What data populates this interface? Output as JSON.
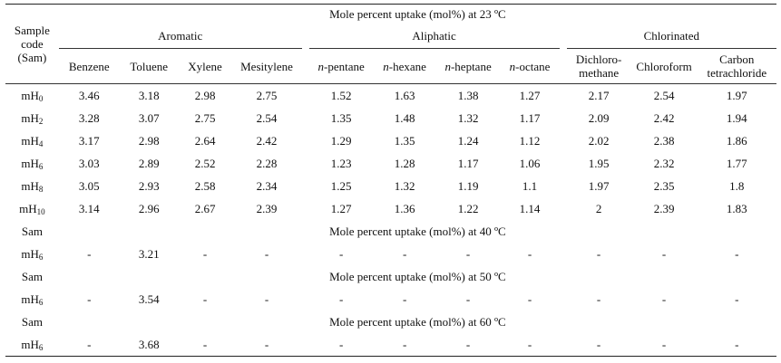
{
  "table": {
    "stub_header": [
      "Sample",
      "code",
      "(Sam)"
    ],
    "title_23": "Mole percent uptake (mol%) at 23 ºC",
    "groups": [
      "Aromatic",
      "Aliphatic",
      "Chlorinated"
    ],
    "columns": {
      "aromatic": [
        "Benzene",
        "Toluene",
        "Xylene",
        "Mesitylene"
      ],
      "aliphatic": [
        {
          "prefix": "n",
          "rest": "-pentane"
        },
        {
          "prefix": "n",
          "rest": "-hexane"
        },
        {
          "prefix": "n",
          "rest": "-heptane"
        },
        {
          "prefix": "n",
          "rest": "-octane"
        }
      ],
      "chlorinated": [
        [
          "Dichloro-",
          "methane"
        ],
        [
          "Chloroform"
        ],
        [
          "Carbon",
          "tetrachloride"
        ]
      ]
    },
    "rows_23": [
      {
        "code": "mH",
        "sub": "0",
        "values": [
          "3.46",
          "3.18",
          "2.98",
          "2.75",
          "1.52",
          "1.63",
          "1.38",
          "1.27",
          "2.17",
          "2.54",
          "1.97"
        ]
      },
      {
        "code": "mH",
        "sub": "2",
        "values": [
          "3.28",
          "3.07",
          "2.75",
          "2.54",
          "1.35",
          "1.48",
          "1.32",
          "1.17",
          "2.09",
          "2.42",
          "1.94"
        ]
      },
      {
        "code": "mH",
        "sub": "4",
        "values": [
          "3.17",
          "2.98",
          "2.64",
          "2.42",
          "1.29",
          "1.35",
          "1.24",
          "1.12",
          "2.02",
          "2.38",
          "1.86"
        ]
      },
      {
        "code": "mH",
        "sub": "6",
        "values": [
          "3.03",
          "2.89",
          "2.52",
          "2.28",
          "1.23",
          "1.28",
          "1.17",
          "1.06",
          "1.95",
          "2.32",
          "1.77"
        ]
      },
      {
        "code": "mH",
        "sub": "8",
        "values": [
          "3.05",
          "2.93",
          "2.58",
          "2.34",
          "1.25",
          "1.32",
          "1.19",
          "1.1",
          "1.97",
          "2.35",
          "1.8"
        ]
      },
      {
        "code": "mH",
        "sub": "10",
        "values": [
          "3.14",
          "2.96",
          "2.67",
          "2.39",
          "1.27",
          "1.36",
          "1.22",
          "1.14",
          "2",
          "2.39",
          "1.83"
        ]
      }
    ],
    "sections": [
      {
        "label": "Sam",
        "title": "Mole percent uptake (mol%) at 40 ºC",
        "row": {
          "code": "mH",
          "sub": "6",
          "values": [
            "-",
            "3.21",
            "-",
            "-",
            "-",
            "-",
            "-",
            "-",
            "-",
            "-",
            "-"
          ]
        }
      },
      {
        "label": "Sam",
        "title": "Mole percent uptake (mol%) at 50 ºC",
        "row": {
          "code": "mH",
          "sub": "6",
          "values": [
            "-",
            "3.54",
            "-",
            "-",
            "-",
            "-",
            "-",
            "-",
            "-",
            "-",
            "-"
          ]
        }
      },
      {
        "label": "Sam",
        "title": "Mole percent uptake (mol%) at 60 ºC",
        "row": {
          "code": "mH",
          "sub": "6",
          "values": [
            "-",
            "3.68",
            "-",
            "-",
            "-",
            "-",
            "-",
            "-",
            "-",
            "-",
            "-"
          ]
        }
      }
    ]
  }
}
